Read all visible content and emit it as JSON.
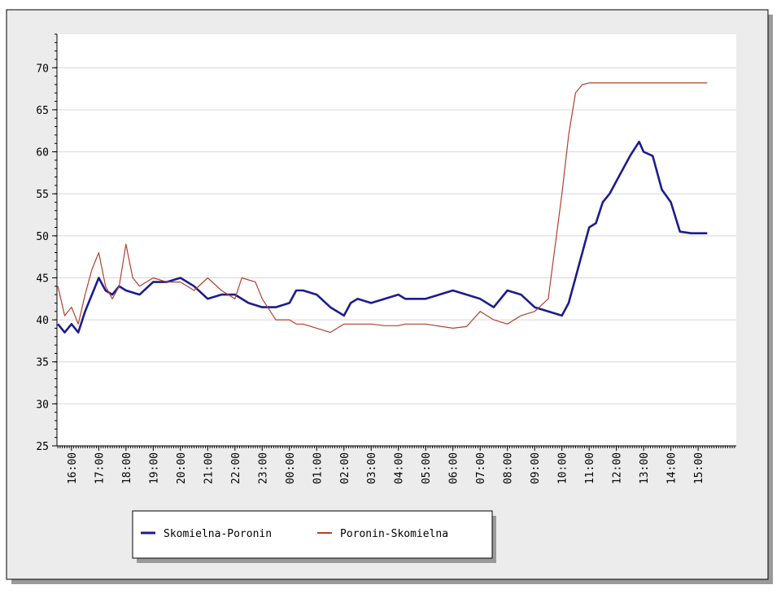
{
  "chart_data": {
    "type": "line",
    "xlim": [
      "15:28",
      "16:24"
    ],
    "xticks": [
      "16:00",
      "17:00",
      "18:00",
      "19:00",
      "20:00",
      "21:00",
      "22:00",
      "23:00",
      "00:00",
      "01:00",
      "02:00",
      "03:00",
      "04:00",
      "05:00",
      "06:00",
      "07:00",
      "08:00",
      "09:00",
      "10:00",
      "11:00",
      "12:00",
      "13:00",
      "14:00",
      "15:00"
    ],
    "ylim": [
      25,
      74
    ],
    "yticks": [
      25,
      30,
      35,
      40,
      45,
      50,
      55,
      60,
      65,
      70
    ],
    "grid": true,
    "legend": "bottom",
    "series": [
      {
        "name": "Skomielna-Poronin",
        "color": "#1c1c8e",
        "x": [
          "15:30",
          "15:45",
          "16:00",
          "16:15",
          "16:30",
          "16:45",
          "17:00",
          "17:15",
          "17:30",
          "17:45",
          "18:00",
          "18:30",
          "19:00",
          "19:30",
          "20:00",
          "20:30",
          "21:00",
          "21:30",
          "22:00",
          "22:30",
          "23:00",
          "23:30",
          "00:00",
          "00:15",
          "00:30",
          "01:00",
          "01:30",
          "02:00",
          "02:15",
          "02:30",
          "03:00",
          "03:30",
          "04:00",
          "04:15",
          "05:00",
          "06:00",
          "06:30",
          "07:00",
          "07:30",
          "08:00",
          "08:30",
          "09:00",
          "09:30",
          "10:00",
          "10:15",
          "10:30",
          "10:45",
          "11:00",
          "11:15",
          "11:30",
          "11:45",
          "12:00",
          "12:15",
          "12:30",
          "12:50",
          "13:00",
          "13:20",
          "13:40",
          "14:00",
          "14:20",
          "14:45",
          "15:20"
        ],
        "values": [
          39.5,
          38.5,
          39.5,
          38.5,
          41,
          43,
          45,
          43.5,
          43,
          44,
          43.5,
          43,
          44.5,
          44.5,
          45,
          44,
          42.5,
          43,
          43,
          42,
          41.5,
          41.5,
          42,
          43.5,
          43.5,
          43,
          41.5,
          40.5,
          42,
          42.5,
          42,
          42.5,
          43,
          42.5,
          42.5,
          43.5,
          43,
          42.5,
          41.5,
          43.5,
          43,
          41.5,
          41,
          40.5,
          42,
          45,
          48,
          51,
          51.5,
          54,
          55,
          56.5,
          58,
          59.5,
          61.2,
          60,
          59.5,
          55.5,
          54,
          50.5,
          50.3,
          50.3
        ]
      },
      {
        "name": "Poronin-Skomielna",
        "color": "#b0402e",
        "x": [
          "15:30",
          "15:45",
          "16:00",
          "16:15",
          "16:30",
          "16:45",
          "17:00",
          "17:15",
          "17:30",
          "17:45",
          "18:00",
          "18:15",
          "18:30",
          "19:00",
          "19:30",
          "20:00",
          "20:30",
          "21:00",
          "21:30",
          "22:00",
          "22:15",
          "22:45",
          "23:00",
          "23:30",
          "00:00",
          "00:15",
          "00:30",
          "01:00",
          "01:30",
          "02:00",
          "02:15",
          "02:30",
          "03:00",
          "03:30",
          "04:00",
          "04:15",
          "05:00",
          "06:00",
          "06:30",
          "07:00",
          "07:30",
          "08:00",
          "08:30",
          "09:00",
          "09:30",
          "10:00",
          "10:15",
          "10:30",
          "10:45",
          "11:00",
          "15:20"
        ],
        "values": [
          44,
          40.5,
          41.5,
          39.5,
          43,
          46,
          48,
          44,
          42.5,
          44,
          49,
          45,
          44,
          45,
          44.5,
          44.5,
          43.5,
          45,
          43.5,
          42.5,
          45,
          44.5,
          42.5,
          40,
          40,
          39.5,
          39.5,
          39,
          38.5,
          39.5,
          39.5,
          39.5,
          39.5,
          39.3,
          39.3,
          39.5,
          39.5,
          39,
          39.2,
          41,
          40,
          39.5,
          40.5,
          41,
          42.5,
          55,
          62,
          67,
          68,
          68.2,
          68.2
        ]
      }
    ]
  }
}
